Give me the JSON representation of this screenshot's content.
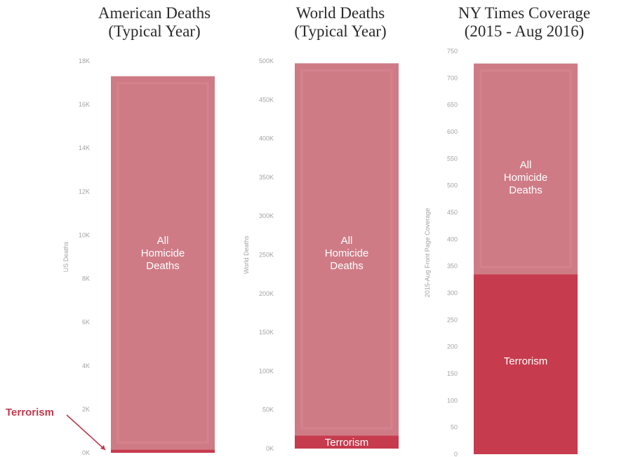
{
  "colors": {
    "homicide": "#cf7b86",
    "terrorism": "#c63b4d",
    "inner_outline": "#d98f99",
    "tick_text": "#a3a3a3",
    "callout": "#c0394d"
  },
  "chart_data": [
    {
      "type": "bar",
      "stacked": true,
      "title": "American Deaths\n(Typical Year)",
      "ylabel": "US Deaths",
      "ylim": [
        0,
        18000
      ],
      "yticks": [
        {
          "value": 0,
          "label": "0K"
        },
        {
          "value": 2000,
          "label": "2K"
        },
        {
          "value": 4000,
          "label": "4K"
        },
        {
          "value": 6000,
          "label": "6K"
        },
        {
          "value": 8000,
          "label": "8K"
        },
        {
          "value": 10000,
          "label": "10K"
        },
        {
          "value": 12000,
          "label": "12K"
        },
        {
          "value": 14000,
          "label": "14K"
        },
        {
          "value": 16000,
          "label": "16K"
        },
        {
          "value": 18000,
          "label": "18K"
        }
      ],
      "series": [
        {
          "name": "Terrorism",
          "value": 150
        },
        {
          "name": "All Homicide Deaths",
          "value": 17150
        }
      ],
      "segment_labels": [
        "",
        "All\nHomicide\nDeaths"
      ],
      "callout": "Terrorism"
    },
    {
      "type": "bar",
      "stacked": true,
      "title": "World Deaths\n(Typical Year)",
      "ylabel": "World Deaths",
      "ylim": [
        0,
        500000
      ],
      "yticks": [
        {
          "value": 0,
          "label": "0K"
        },
        {
          "value": 50000,
          "label": "50K"
        },
        {
          "value": 100000,
          "label": "100K"
        },
        {
          "value": 150000,
          "label": "150K"
        },
        {
          "value": 200000,
          "label": "200K"
        },
        {
          "value": 250000,
          "label": "250K"
        },
        {
          "value": 300000,
          "label": "300K"
        },
        {
          "value": 350000,
          "label": "350K"
        },
        {
          "value": 400000,
          "label": "400K"
        },
        {
          "value": 450000,
          "label": "450K"
        },
        {
          "value": 500000,
          "label": "500K"
        }
      ],
      "series": [
        {
          "name": "Terrorism",
          "value": 17000
        },
        {
          "name": "All Homicide Deaths",
          "value": 480000
        }
      ],
      "segment_labels": [
        "Terrorism",
        "All\nHomicide\nDeaths"
      ]
    },
    {
      "type": "bar",
      "stacked": true,
      "title": "NY Times Coverage\n(2015 - Aug 2016)",
      "ylabel": "2015-Aug Front Page Coverage",
      "ylim": [
        0,
        750
      ],
      "yticks": [
        {
          "value": 0,
          "label": "0"
        },
        {
          "value": 50,
          "label": "50"
        },
        {
          "value": 100,
          "label": "100"
        },
        {
          "value": 150,
          "label": "150"
        },
        {
          "value": 200,
          "label": "200"
        },
        {
          "value": 250,
          "label": "250"
        },
        {
          "value": 300,
          "label": "300"
        },
        {
          "value": 350,
          "label": "350"
        },
        {
          "value": 400,
          "label": "400"
        },
        {
          "value": 450,
          "label": "450"
        },
        {
          "value": 500,
          "label": "500"
        },
        {
          "value": 550,
          "label": "550"
        },
        {
          "value": 600,
          "label": "600"
        },
        {
          "value": 650,
          "label": "650"
        },
        {
          "value": 700,
          "label": "700"
        },
        {
          "value": 750,
          "label": "750"
        }
      ],
      "series": [
        {
          "name": "Terrorism",
          "value": 335
        },
        {
          "name": "All Homicide Deaths",
          "value": 392
        }
      ],
      "segment_labels": [
        "Terrorism",
        "All\nHomicide\nDeaths"
      ]
    }
  ]
}
